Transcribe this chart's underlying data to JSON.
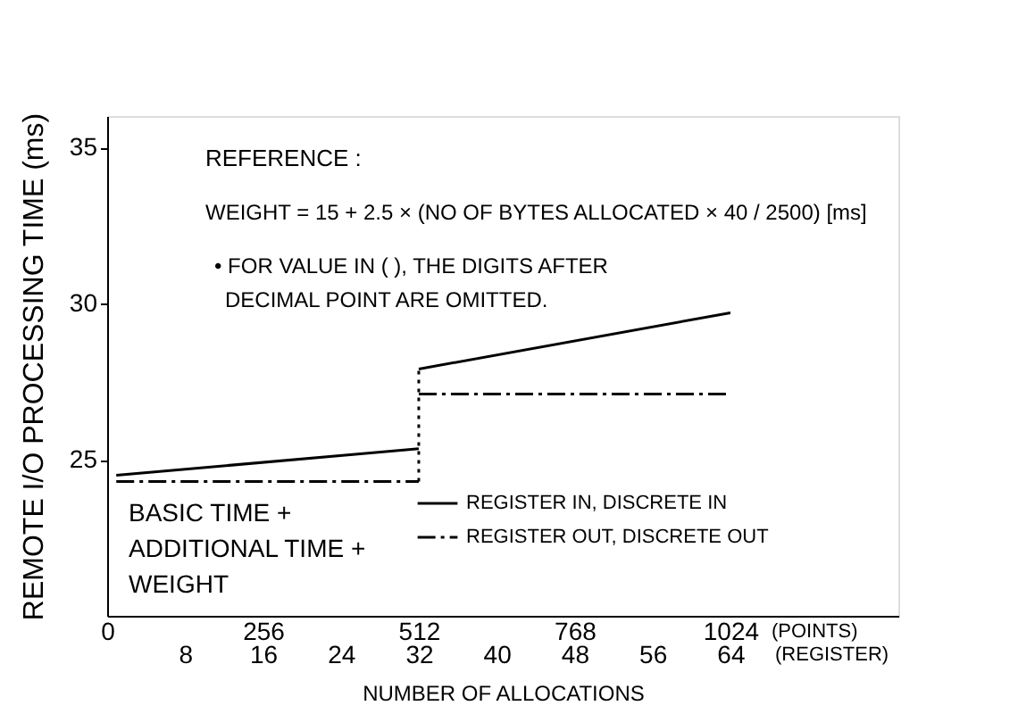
{
  "chart_data": {
    "type": "line",
    "xlabel": "NUMBER OF ALLOCATIONS",
    "ylabel": "REMOTE I/O PROCESSING TIME (ms)",
    "xlim": [
      0,
      1300
    ],
    "xticks": [
      0,
      256,
      512,
      768,
      1024
    ],
    "x2lim": [
      0,
      81.25
    ],
    "x2ticks": [
      8,
      16,
      24,
      32,
      40,
      48,
      56,
      64
    ],
    "ylim": [
      20,
      36
    ],
    "yticks": [
      25,
      30,
      35
    ],
    "series": [
      {
        "name": "REGISTER IN, DISCRETE IN",
        "color": "#000000",
        "line_style": "solid",
        "x": [
          15,
          512
        ],
        "values": [
          24.5,
          25.35
        ]
      },
      {
        "color": "#000000",
        "line_style": "solid",
        "x": [
          512,
          1024
        ],
        "values": [
          27.9,
          29.7
        ]
      },
      {
        "name": "REGISTER OUT, DISCRETE OUT",
        "color": "#000000",
        "line_style": "dashed",
        "x": [
          15,
          512
        ],
        "values": [
          24.3,
          24.3
        ]
      },
      {
        "color": "#000000",
        "line_style": "dashed",
        "x": [
          512,
          1024
        ],
        "values": [
          27.1,
          27.1
        ]
      },
      {
        "color": "#000000",
        "line_style": "dotted",
        "x": [
          512,
          512
        ],
        "values": [
          24.3,
          27.9
        ]
      }
    ],
    "annotations": [
      "REFERENCE :",
      "WEIGHT = 15 + 2.5 × (NO OF BYTES ALLOCATED × 40 / 2500) [ms]",
      "• FOR VALUE IN (     ), THE DIGITS AFTER",
      "DECIMAL POINT ARE OMITTED.",
      "BASIC TIME +",
      "ADDITIONAL TIME +",
      "WEIGHT",
      "(POINTS)",
      "(REGISTER)"
    ],
    "legend": "bottom right",
    "grid": false
  }
}
